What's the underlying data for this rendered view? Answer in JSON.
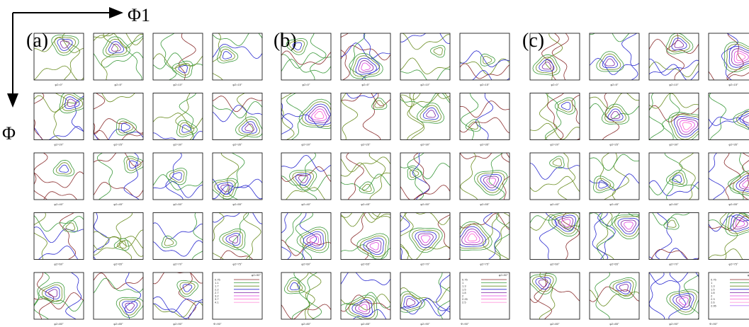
{
  "axes": {
    "horizontal": "Φ1",
    "vertical": "Φ"
  },
  "panels": [
    {
      "label": "(a)",
      "captions": [
        "φ2=0°",
        "φ2=5°",
        "φ2=10°",
        "φ2=15°",
        "φ2=20°",
        "φ2=25°",
        "φ2=30°",
        "φ2=35°",
        "φ2=40°",
        "φ2=45°",
        "φ2=50°",
        "φ2=55°",
        "φ2=60°",
        "φ2=65°",
        "φ2=70°",
        "φ2=75°",
        "φ2=80°",
        "φ2=85°",
        "φ2=90°"
      ],
      "legend": {
        "title": "φ2=90°",
        "footer": "Φ=90°",
        "levels": [
          "0.75",
          "1.1",
          "1.7",
          "2.2",
          "2.7",
          "3.2",
          "3.7",
          "4.1"
        ]
      }
    },
    {
      "label": "(b)",
      "captions": [
        "φ2=0°",
        "φ2=5°",
        "φ2=10°",
        "φ2=15°",
        "φ2=20°",
        "φ2=25°",
        "φ2=30°",
        "φ2=35°",
        "φ2=40°",
        "φ2=45°",
        "φ2=50°",
        "φ2=55°",
        "φ2=60°",
        "φ2=65°",
        "φ2=70°",
        "φ2=75°",
        "φ2=80°",
        "φ2=85°",
        "φ2=90°"
      ],
      "legend": {
        "title": "φ2=90°",
        "footer": "Φ=90°",
        "levels": [
          "0.75",
          "1",
          "1.3",
          "1.5",
          "1.8",
          "2",
          "2.25",
          "2.5"
        ]
      }
    },
    {
      "label": "(c)",
      "captions": [
        "φ2=0°",
        "φ2=5°",
        "φ2=10°",
        "φ2=15°",
        "φ2=20°",
        "φ2=25°",
        "φ2=30°",
        "φ2=35°",
        "φ2=40°",
        "φ2=45°",
        "φ2=50°",
        "φ2=55°",
        "φ2=60°",
        "φ2=65°",
        "φ2=70°",
        "φ2=75°",
        "φ2=80°",
        "φ2=85°",
        "φ2=90°"
      ],
      "legend": {
        "title": "φ2=90°",
        "footer": "Φ=90°",
        "levels": [
          "0.75",
          "1",
          "1.3",
          "1.5",
          "1.8",
          "2",
          "2.3",
          "2.6",
          "2.95"
        ]
      }
    }
  ]
}
